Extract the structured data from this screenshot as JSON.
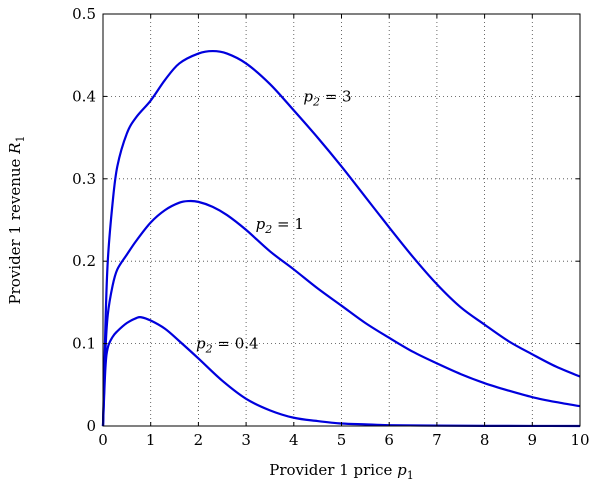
{
  "chart_data": {
    "type": "line",
    "xlabel": {
      "text": "Provider 1 price ",
      "var": "p",
      "sub": "1"
    },
    "ylabel": {
      "text": "Provider 1 revenue ",
      "var": "R",
      "sub": "1"
    },
    "xlim": [
      0,
      10
    ],
    "ylim": [
      0,
      0.5
    ],
    "xticks": [
      "0",
      "1",
      "2",
      "3",
      "4",
      "5",
      "6",
      "7",
      "8",
      "9",
      "10"
    ],
    "yticks": [
      "0",
      "0.1",
      "0.2",
      "0.3",
      "0.4",
      "0.5"
    ],
    "grid": true,
    "line_color": "#0000dd",
    "series": [
      {
        "name": "p2 = 3",
        "label": {
          "var": "p",
          "sub": "2",
          "rest": " = 3"
        },
        "label_at": [
          4.2,
          0.4
        ],
        "x": [
          0,
          0.05,
          0.1,
          0.2,
          0.3,
          0.5,
          0.7,
          1.0,
          1.3,
          1.6,
          2.0,
          2.3,
          2.6,
          3.0,
          3.5,
          4.0,
          4.5,
          5.0,
          5.5,
          6.0,
          6.5,
          7.0,
          7.5,
          8.0,
          8.5,
          9.0,
          9.5,
          10.0
        ],
        "values": [
          0,
          0.12,
          0.2,
          0.27,
          0.315,
          0.355,
          0.375,
          0.395,
          0.42,
          0.44,
          0.452,
          0.455,
          0.452,
          0.44,
          0.415,
          0.383,
          0.35,
          0.315,
          0.278,
          0.241,
          0.205,
          0.172,
          0.144,
          0.123,
          0.103,
          0.087,
          0.072,
          0.06
        ]
      },
      {
        "name": "p2 = 1",
        "label": {
          "var": "p",
          "sub": "2",
          "rest": " = 1"
        },
        "label_at": [
          3.2,
          0.245
        ],
        "x": [
          0,
          0.05,
          0.1,
          0.2,
          0.3,
          0.5,
          0.7,
          1.0,
          1.3,
          1.6,
          1.8,
          2.0,
          2.3,
          2.6,
          3.0,
          3.5,
          4.0,
          4.5,
          5.0,
          5.5,
          6.0,
          6.5,
          7.0,
          7.5,
          8.0,
          8.5,
          9.0,
          9.5,
          10.0
        ],
        "values": [
          0,
          0.09,
          0.135,
          0.17,
          0.19,
          0.208,
          0.225,
          0.247,
          0.262,
          0.271,
          0.273,
          0.272,
          0.266,
          0.256,
          0.238,
          0.212,
          0.19,
          0.167,
          0.146,
          0.125,
          0.107,
          0.09,
          0.076,
          0.063,
          0.052,
          0.043,
          0.035,
          0.029,
          0.024
        ]
      },
      {
        "name": "p2 = 0.4",
        "label": {
          "var": "p",
          "sub": "2",
          "rest": " = 0.4"
        },
        "label_at": [
          1.95,
          0.1
        ],
        "x": [
          0,
          0.05,
          0.1,
          0.2,
          0.3,
          0.5,
          0.7,
          0.8,
          1.0,
          1.3,
          1.6,
          2.0,
          2.5,
          3.0,
          3.5,
          4.0,
          4.5,
          5.0,
          5.5,
          6.0,
          7.0,
          8.0,
          9.0,
          10.0
        ],
        "values": [
          0,
          0.07,
          0.095,
          0.108,
          0.115,
          0.125,
          0.131,
          0.132,
          0.128,
          0.118,
          0.103,
          0.082,
          0.055,
          0.033,
          0.019,
          0.01,
          0.006,
          0.003,
          0.002,
          0.001,
          0.0005,
          0.0002,
          0.0001,
          0.0
        ]
      }
    ]
  }
}
